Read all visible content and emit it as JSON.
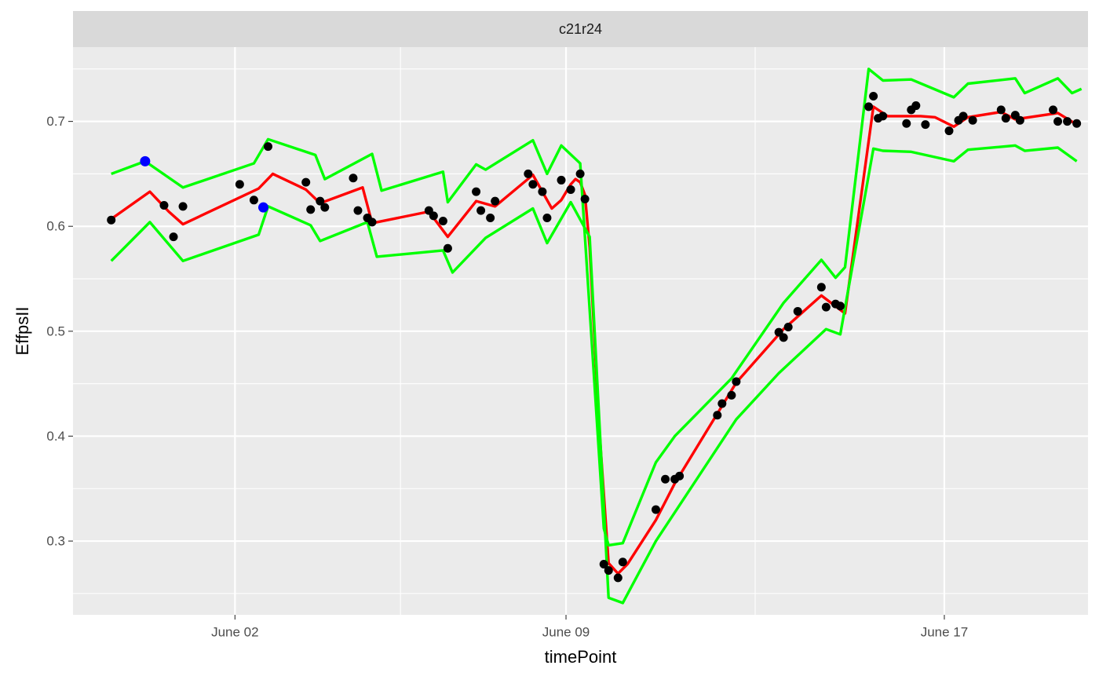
{
  "chart_data": {
    "type": "line",
    "facet_label": "c21r24",
    "xlabel": "timePoint",
    "ylabel": "EffpsII",
    "x_ticks": [
      {
        "date": "2024-06-02",
        "label": "June 02"
      },
      {
        "date": "2024-06-09",
        "label": "June 09"
      },
      {
        "date": "2024-06-17",
        "label": "June 17"
      }
    ],
    "x_minor_ticks": [
      "2024-06-05T12:00",
      "2024-06-13T00:00"
    ],
    "xlim": [
      "2024-05-29T13:48",
      "2024-06-20T00:55"
    ],
    "y_ticks": [
      {
        "value": 0.3,
        "label": "0.3"
      },
      {
        "value": 0.4,
        "label": "0.4"
      },
      {
        "value": 0.5,
        "label": "0.5"
      },
      {
        "value": 0.6,
        "label": "0.6"
      },
      {
        "value": 0.7,
        "label": "0.7"
      }
    ],
    "y_minor_ticks": [
      0.25,
      0.35,
      0.45,
      0.55,
      0.65,
      0.75
    ],
    "ylim": [
      0.2297,
      0.7708
    ],
    "grid": true,
    "colors": {
      "panel": "#ebebeb",
      "strip": "#d9d9d9",
      "grid": "#ffffff",
      "points": "#000000",
      "outlier_points": "#0000ff",
      "fit_line": "#ff0000",
      "bound_lines": "#00ff00"
    },
    "series": [
      {
        "role": "observations",
        "kind": "points",
        "color": "#000000",
        "points": [
          [
            "2024-05-30T09:12",
            0.606
          ],
          [
            "2024-05-31T12:00",
            0.62
          ],
          [
            "2024-05-31T16:48",
            0.59
          ],
          [
            "2024-05-31T21:36",
            0.619
          ],
          [
            "2024-06-02T02:24",
            0.64
          ],
          [
            "2024-06-02T09:36",
            0.625
          ],
          [
            "2024-06-02T16:48",
            0.676
          ],
          [
            "2024-06-03T12:00",
            0.642
          ],
          [
            "2024-06-03T14:24",
            0.616
          ],
          [
            "2024-06-03T19:12",
            0.624
          ],
          [
            "2024-06-03T21:36",
            0.618
          ],
          [
            "2024-06-04T12:00",
            0.646
          ],
          [
            "2024-06-04T14:24",
            0.615
          ],
          [
            "2024-06-04T19:12",
            0.608
          ],
          [
            "2024-06-04T21:36",
            0.604
          ],
          [
            "2024-06-06T02:24",
            0.615
          ],
          [
            "2024-06-06T04:48",
            0.61
          ],
          [
            "2024-06-06T09:36",
            0.605
          ],
          [
            "2024-06-06T12:00",
            0.579
          ],
          [
            "2024-06-07T02:24",
            0.633
          ],
          [
            "2024-06-07T04:48",
            0.615
          ],
          [
            "2024-06-07T09:36",
            0.608
          ],
          [
            "2024-06-07T12:00",
            0.624
          ],
          [
            "2024-06-08T04:48",
            0.65
          ],
          [
            "2024-06-08T07:12",
            0.64
          ],
          [
            "2024-06-08T12:00",
            0.633
          ],
          [
            "2024-06-08T14:24",
            0.608
          ],
          [
            "2024-06-08T21:36",
            0.644
          ],
          [
            "2024-06-09T02:24",
            0.635
          ],
          [
            "2024-06-09T07:12",
            0.65
          ],
          [
            "2024-06-09T09:36",
            0.626
          ],
          [
            "2024-06-09T19:12",
            0.278
          ],
          [
            "2024-06-09T21:36",
            0.272
          ],
          [
            "2024-06-10T02:24",
            0.265
          ],
          [
            "2024-06-10T04:48",
            0.28
          ],
          [
            "2024-06-10T21:36",
            0.33
          ],
          [
            "2024-06-11T02:24",
            0.359
          ],
          [
            "2024-06-11T07:12",
            0.359
          ],
          [
            "2024-06-11T09:36",
            0.362
          ],
          [
            "2024-06-12T04:48",
            0.42
          ],
          [
            "2024-06-12T07:12",
            0.431
          ],
          [
            "2024-06-12T12:00",
            0.439
          ],
          [
            "2024-06-12T14:24",
            0.452
          ],
          [
            "2024-06-13T12:00",
            0.499
          ],
          [
            "2024-06-13T14:24",
            0.494
          ],
          [
            "2024-06-13T16:48",
            0.504
          ],
          [
            "2024-06-13T21:36",
            0.519
          ],
          [
            "2024-06-14T09:36",
            0.542
          ],
          [
            "2024-06-14T12:00",
            0.523
          ],
          [
            "2024-06-14T16:48",
            0.526
          ],
          [
            "2024-06-14T19:12",
            0.524
          ],
          [
            "2024-06-15T09:36",
            0.714
          ],
          [
            "2024-06-15T12:00",
            0.724
          ],
          [
            "2024-06-15T14:24",
            0.703
          ],
          [
            "2024-06-15T16:48",
            0.705
          ],
          [
            "2024-06-16T04:48",
            0.698
          ],
          [
            "2024-06-16T07:12",
            0.711
          ],
          [
            "2024-06-16T09:36",
            0.715
          ],
          [
            "2024-06-16T14:24",
            0.697
          ],
          [
            "2024-06-17T02:24",
            0.691
          ],
          [
            "2024-06-17T07:12",
            0.701
          ],
          [
            "2024-06-17T09:36",
            0.705
          ],
          [
            "2024-06-17T14:24",
            0.701
          ],
          [
            "2024-06-18T04:48",
            0.711
          ],
          [
            "2024-06-18T07:12",
            0.703
          ],
          [
            "2024-06-18T12:00",
            0.706
          ],
          [
            "2024-06-18T14:24",
            0.701
          ],
          [
            "2024-06-19T07:12",
            0.711
          ],
          [
            "2024-06-19T09:36",
            0.7
          ],
          [
            "2024-06-19T14:24",
            0.7
          ],
          [
            "2024-06-19T19:12",
            0.698
          ]
        ]
      },
      {
        "role": "outliers",
        "kind": "points",
        "color": "#0000ff",
        "points": [
          [
            "2024-05-31T02:24",
            0.662
          ],
          [
            "2024-06-02T14:24",
            0.618
          ]
        ]
      },
      {
        "role": "fit",
        "kind": "line",
        "color": "#ff0000",
        "points": [
          [
            "2024-05-30T09:12",
            0.607
          ],
          [
            "2024-05-31T04:48",
            0.633
          ],
          [
            "2024-05-31T14:24",
            0.614
          ],
          [
            "2024-05-31T21:36",
            0.602
          ],
          [
            "2024-06-02T12:00",
            0.636
          ],
          [
            "2024-06-02T19:12",
            0.65
          ],
          [
            "2024-06-03T12:00",
            0.635
          ],
          [
            "2024-06-03T19:12",
            0.622
          ],
          [
            "2024-06-04T16:48",
            0.637
          ],
          [
            "2024-06-04T21:36",
            0.603
          ],
          [
            "2024-06-06T02:24",
            0.614
          ],
          [
            "2024-06-06T12:00",
            0.59
          ],
          [
            "2024-06-07T02:24",
            0.624
          ],
          [
            "2024-06-07T12:00",
            0.619
          ],
          [
            "2024-06-08T07:12",
            0.649
          ],
          [
            "2024-06-08T16:48",
            0.617
          ],
          [
            "2024-06-08T21:36",
            0.625
          ],
          [
            "2024-06-09T02:24",
            0.64
          ],
          [
            "2024-06-09T04:48",
            0.645
          ],
          [
            "2024-06-09T07:12",
            0.642
          ],
          [
            "2024-06-09T09:36",
            0.63
          ],
          [
            "2024-06-09T12:00",
            0.58
          ],
          [
            "2024-06-09T16:48",
            0.41
          ],
          [
            "2024-06-09T21:36",
            0.279
          ],
          [
            "2024-06-10T02:24",
            0.269
          ],
          [
            "2024-06-10T07:12",
            0.278
          ],
          [
            "2024-06-10T21:36",
            0.32
          ],
          [
            "2024-06-11T07:12",
            0.355
          ],
          [
            "2024-06-12T14:24",
            0.451
          ],
          [
            "2024-06-13T14:24",
            0.502
          ],
          [
            "2024-06-14T09:36",
            0.534
          ],
          [
            "2024-06-14T21:36",
            0.517
          ],
          [
            "2024-06-15T12:00",
            0.714
          ],
          [
            "2024-06-15T19:12",
            0.705
          ],
          [
            "2024-06-16T12:00",
            0.705
          ],
          [
            "2024-06-16T19:12",
            0.704
          ],
          [
            "2024-06-17T04:48",
            0.695
          ],
          [
            "2024-06-17T12:00",
            0.704
          ],
          [
            "2024-06-18T04:48",
            0.709
          ],
          [
            "2024-06-18T12:00",
            0.702
          ],
          [
            "2024-06-19T09:36",
            0.708
          ],
          [
            "2024-06-19T19:12",
            0.697
          ]
        ]
      },
      {
        "role": "upper-bound",
        "kind": "line",
        "color": "#00ff00",
        "points": [
          [
            "2024-05-30T09:12",
            0.65
          ],
          [
            "2024-05-31T02:24",
            0.662
          ],
          [
            "2024-05-31T21:36",
            0.637
          ],
          [
            "2024-06-02T09:36",
            0.66
          ],
          [
            "2024-06-02T16:48",
            0.683
          ],
          [
            "2024-06-03T16:48",
            0.668
          ],
          [
            "2024-06-03T21:36",
            0.645
          ],
          [
            "2024-06-04T21:36",
            0.669
          ],
          [
            "2024-06-05T02:24",
            0.634
          ],
          [
            "2024-06-06T09:36",
            0.652
          ],
          [
            "2024-06-06T12:00",
            0.623
          ],
          [
            "2024-06-07T02:24",
            0.659
          ],
          [
            "2024-06-07T07:12",
            0.654
          ],
          [
            "2024-06-08T07:12",
            0.682
          ],
          [
            "2024-06-08T14:24",
            0.65
          ],
          [
            "2024-06-08T21:36",
            0.677
          ],
          [
            "2024-06-09T07:12",
            0.66
          ],
          [
            "2024-06-09T19:12",
            0.312
          ],
          [
            "2024-06-09T21:36",
            0.296
          ],
          [
            "2024-06-10T04:48",
            0.298
          ],
          [
            "2024-06-10T21:36",
            0.375
          ],
          [
            "2024-06-11T07:12",
            0.4
          ],
          [
            "2024-06-12T12:00",
            0.455
          ],
          [
            "2024-06-13T14:24",
            0.527
          ],
          [
            "2024-06-14T09:36",
            0.568
          ],
          [
            "2024-06-14T16:48",
            0.551
          ],
          [
            "2024-06-14T21:36",
            0.561
          ],
          [
            "2024-06-15T09:36",
            0.75
          ],
          [
            "2024-06-15T16:48",
            0.739
          ],
          [
            "2024-06-16T07:12",
            0.74
          ],
          [
            "2024-06-17T04:48",
            0.723
          ],
          [
            "2024-06-17T12:00",
            0.736
          ],
          [
            "2024-06-18T12:00",
            0.741
          ],
          [
            "2024-06-18T16:48",
            0.727
          ],
          [
            "2024-06-19T09:36",
            0.741
          ],
          [
            "2024-06-19T16:48",
            0.727
          ],
          [
            "2024-06-19T21:36",
            0.731
          ]
        ]
      },
      {
        "role": "lower-bound",
        "kind": "line",
        "color": "#00ff00",
        "points": [
          [
            "2024-05-30T09:12",
            0.567
          ],
          [
            "2024-05-31T04:48",
            0.604
          ],
          [
            "2024-05-31T21:36",
            0.567
          ],
          [
            "2024-06-02T12:00",
            0.592
          ],
          [
            "2024-06-02T16:48",
            0.619
          ],
          [
            "2024-06-03T14:24",
            0.601
          ],
          [
            "2024-06-03T19:12",
            0.586
          ],
          [
            "2024-06-04T19:12",
            0.604
          ],
          [
            "2024-06-05T00:00",
            0.571
          ],
          [
            "2024-06-06T09:36",
            0.577
          ],
          [
            "2024-06-06T14:24",
            0.556
          ],
          [
            "2024-06-07T07:12",
            0.589
          ],
          [
            "2024-06-08T07:12",
            0.617
          ],
          [
            "2024-06-08T14:24",
            0.584
          ],
          [
            "2024-06-09T02:24",
            0.623
          ],
          [
            "2024-06-09T12:00",
            0.59
          ],
          [
            "2024-06-09T21:36",
            0.246
          ],
          [
            "2024-06-10T04:48",
            0.241
          ],
          [
            "2024-06-10T21:36",
            0.3
          ],
          [
            "2024-06-12T14:24",
            0.416
          ],
          [
            "2024-06-13T12:00",
            0.46
          ],
          [
            "2024-06-14T12:00",
            0.502
          ],
          [
            "2024-06-14T19:12",
            0.497
          ],
          [
            "2024-06-15T12:00",
            0.674
          ],
          [
            "2024-06-15T16:48",
            0.672
          ],
          [
            "2024-06-16T07:12",
            0.671
          ],
          [
            "2024-06-17T04:48",
            0.662
          ],
          [
            "2024-06-17T12:00",
            0.673
          ],
          [
            "2024-06-18T12:00",
            0.677
          ],
          [
            "2024-06-18T16:48",
            0.672
          ],
          [
            "2024-06-19T09:36",
            0.675
          ],
          [
            "2024-06-19T19:12",
            0.662
          ]
        ]
      }
    ]
  }
}
